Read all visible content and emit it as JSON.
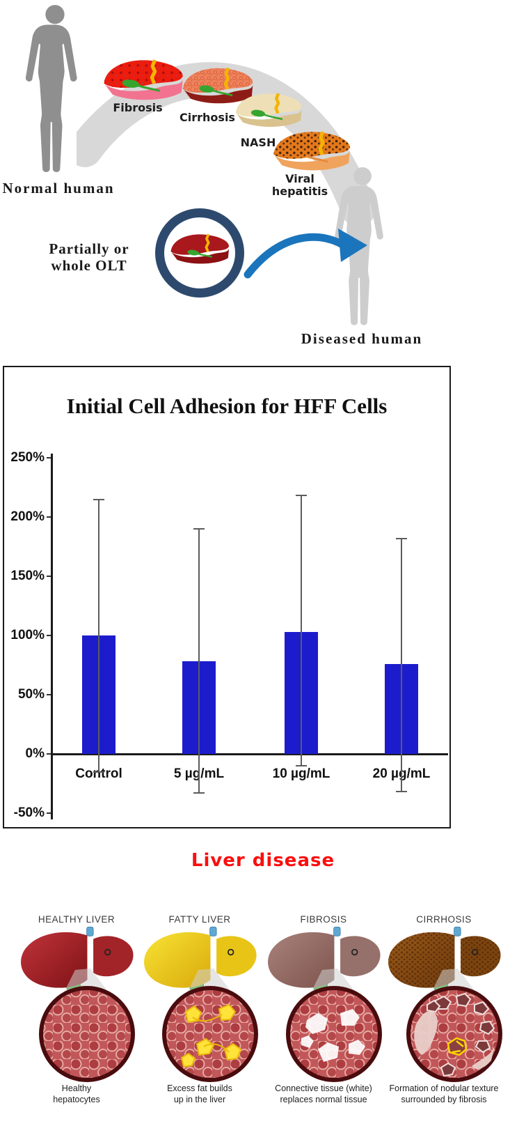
{
  "top_diagram": {
    "normal_human_label": "Normal human",
    "diseased_human_label": "Diseased human",
    "olt_label_line1": "Partially or",
    "olt_label_line2": "whole OLT",
    "stages": [
      {
        "label": "Fibrosis"
      },
      {
        "label": "Cirrhosis"
      },
      {
        "label": "NASH"
      },
      {
        "label": "Viral hepatitis"
      }
    ],
    "arrow_color": "#1b75bc",
    "ring_color": "#2d4a6e"
  },
  "chart_data": {
    "type": "bar",
    "title": "Initial Cell Adhesion for HFF Cells",
    "categories": [
      "Control",
      "5 µg/mL",
      "10 µg/mL",
      "20 µg/mL"
    ],
    "values": [
      100,
      78,
      103,
      76
    ],
    "error_top": [
      215,
      190,
      218,
      182
    ],
    "error_bottom": [
      -15,
      -33,
      -10,
      -32
    ],
    "y_ticks": [
      "250%",
      "200%",
      "150%",
      "100%",
      "50%",
      "0%",
      "-50%"
    ],
    "y_tick_values": [
      250,
      200,
      150,
      100,
      50,
      0,
      -50
    ],
    "ylim": [
      -50,
      250
    ],
    "xlabel": "",
    "ylabel": "",
    "bar_color": "#1c1ccd",
    "grid": false,
    "legend": null
  },
  "liver_panel": {
    "title": "Liver disease",
    "title_color": "#fb0e0e",
    "columns": [
      {
        "header": "HEALTHY LIVER",
        "caption_line1": "Healthy",
        "caption_line2": "hepatocytes"
      },
      {
        "header": "FATTY LIVER",
        "caption_line1": "Excess fat builds",
        "caption_line2": "up in the liver"
      },
      {
        "header": "FIBROSIS",
        "caption_line1": "Connective tissue (white)",
        "caption_line2": "replaces normal tissue"
      },
      {
        "header": "CIRRHOSIS",
        "caption_line1": "Formation of nodular texture",
        "caption_line2": "surrounded by fibrosis"
      }
    ]
  }
}
